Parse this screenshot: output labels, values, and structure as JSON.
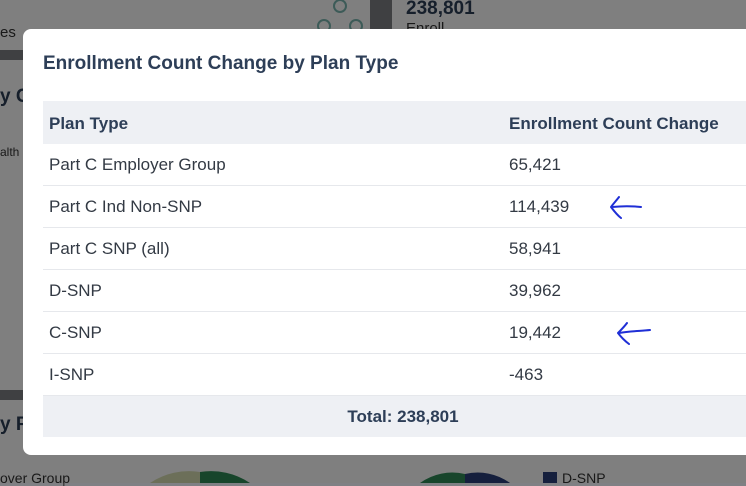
{
  "background": {
    "partial_texts": [
      "es",
      "y C",
      "alth",
      "y P",
      "over Group",
      "D-SNP"
    ],
    "kpi_value": "238,801",
    "kpi_partial_label": "Enroll"
  },
  "modal": {
    "title": "Enrollment Count Change by Plan Type",
    "columns": [
      "Plan Type",
      "Enrollment Count Change"
    ],
    "rows": [
      {
        "plan_type": "Part C Employer Group",
        "change": "65,421"
      },
      {
        "plan_type": "Part C Ind Non-SNP",
        "change": "114,439"
      },
      {
        "plan_type": "Part C SNP (all)",
        "change": "58,941"
      },
      {
        "plan_type": "D-SNP",
        "change": "39,962"
      },
      {
        "plan_type": "C-SNP",
        "change": "19,442"
      },
      {
        "plan_type": "I-SNP",
        "change": "-463"
      }
    ],
    "total": "Total: 238,801"
  },
  "annotations": {
    "arrow_color": "#1f2fd6",
    "arrow_rows": [
      "Part C Ind Non-SNP",
      "C-SNP"
    ]
  }
}
